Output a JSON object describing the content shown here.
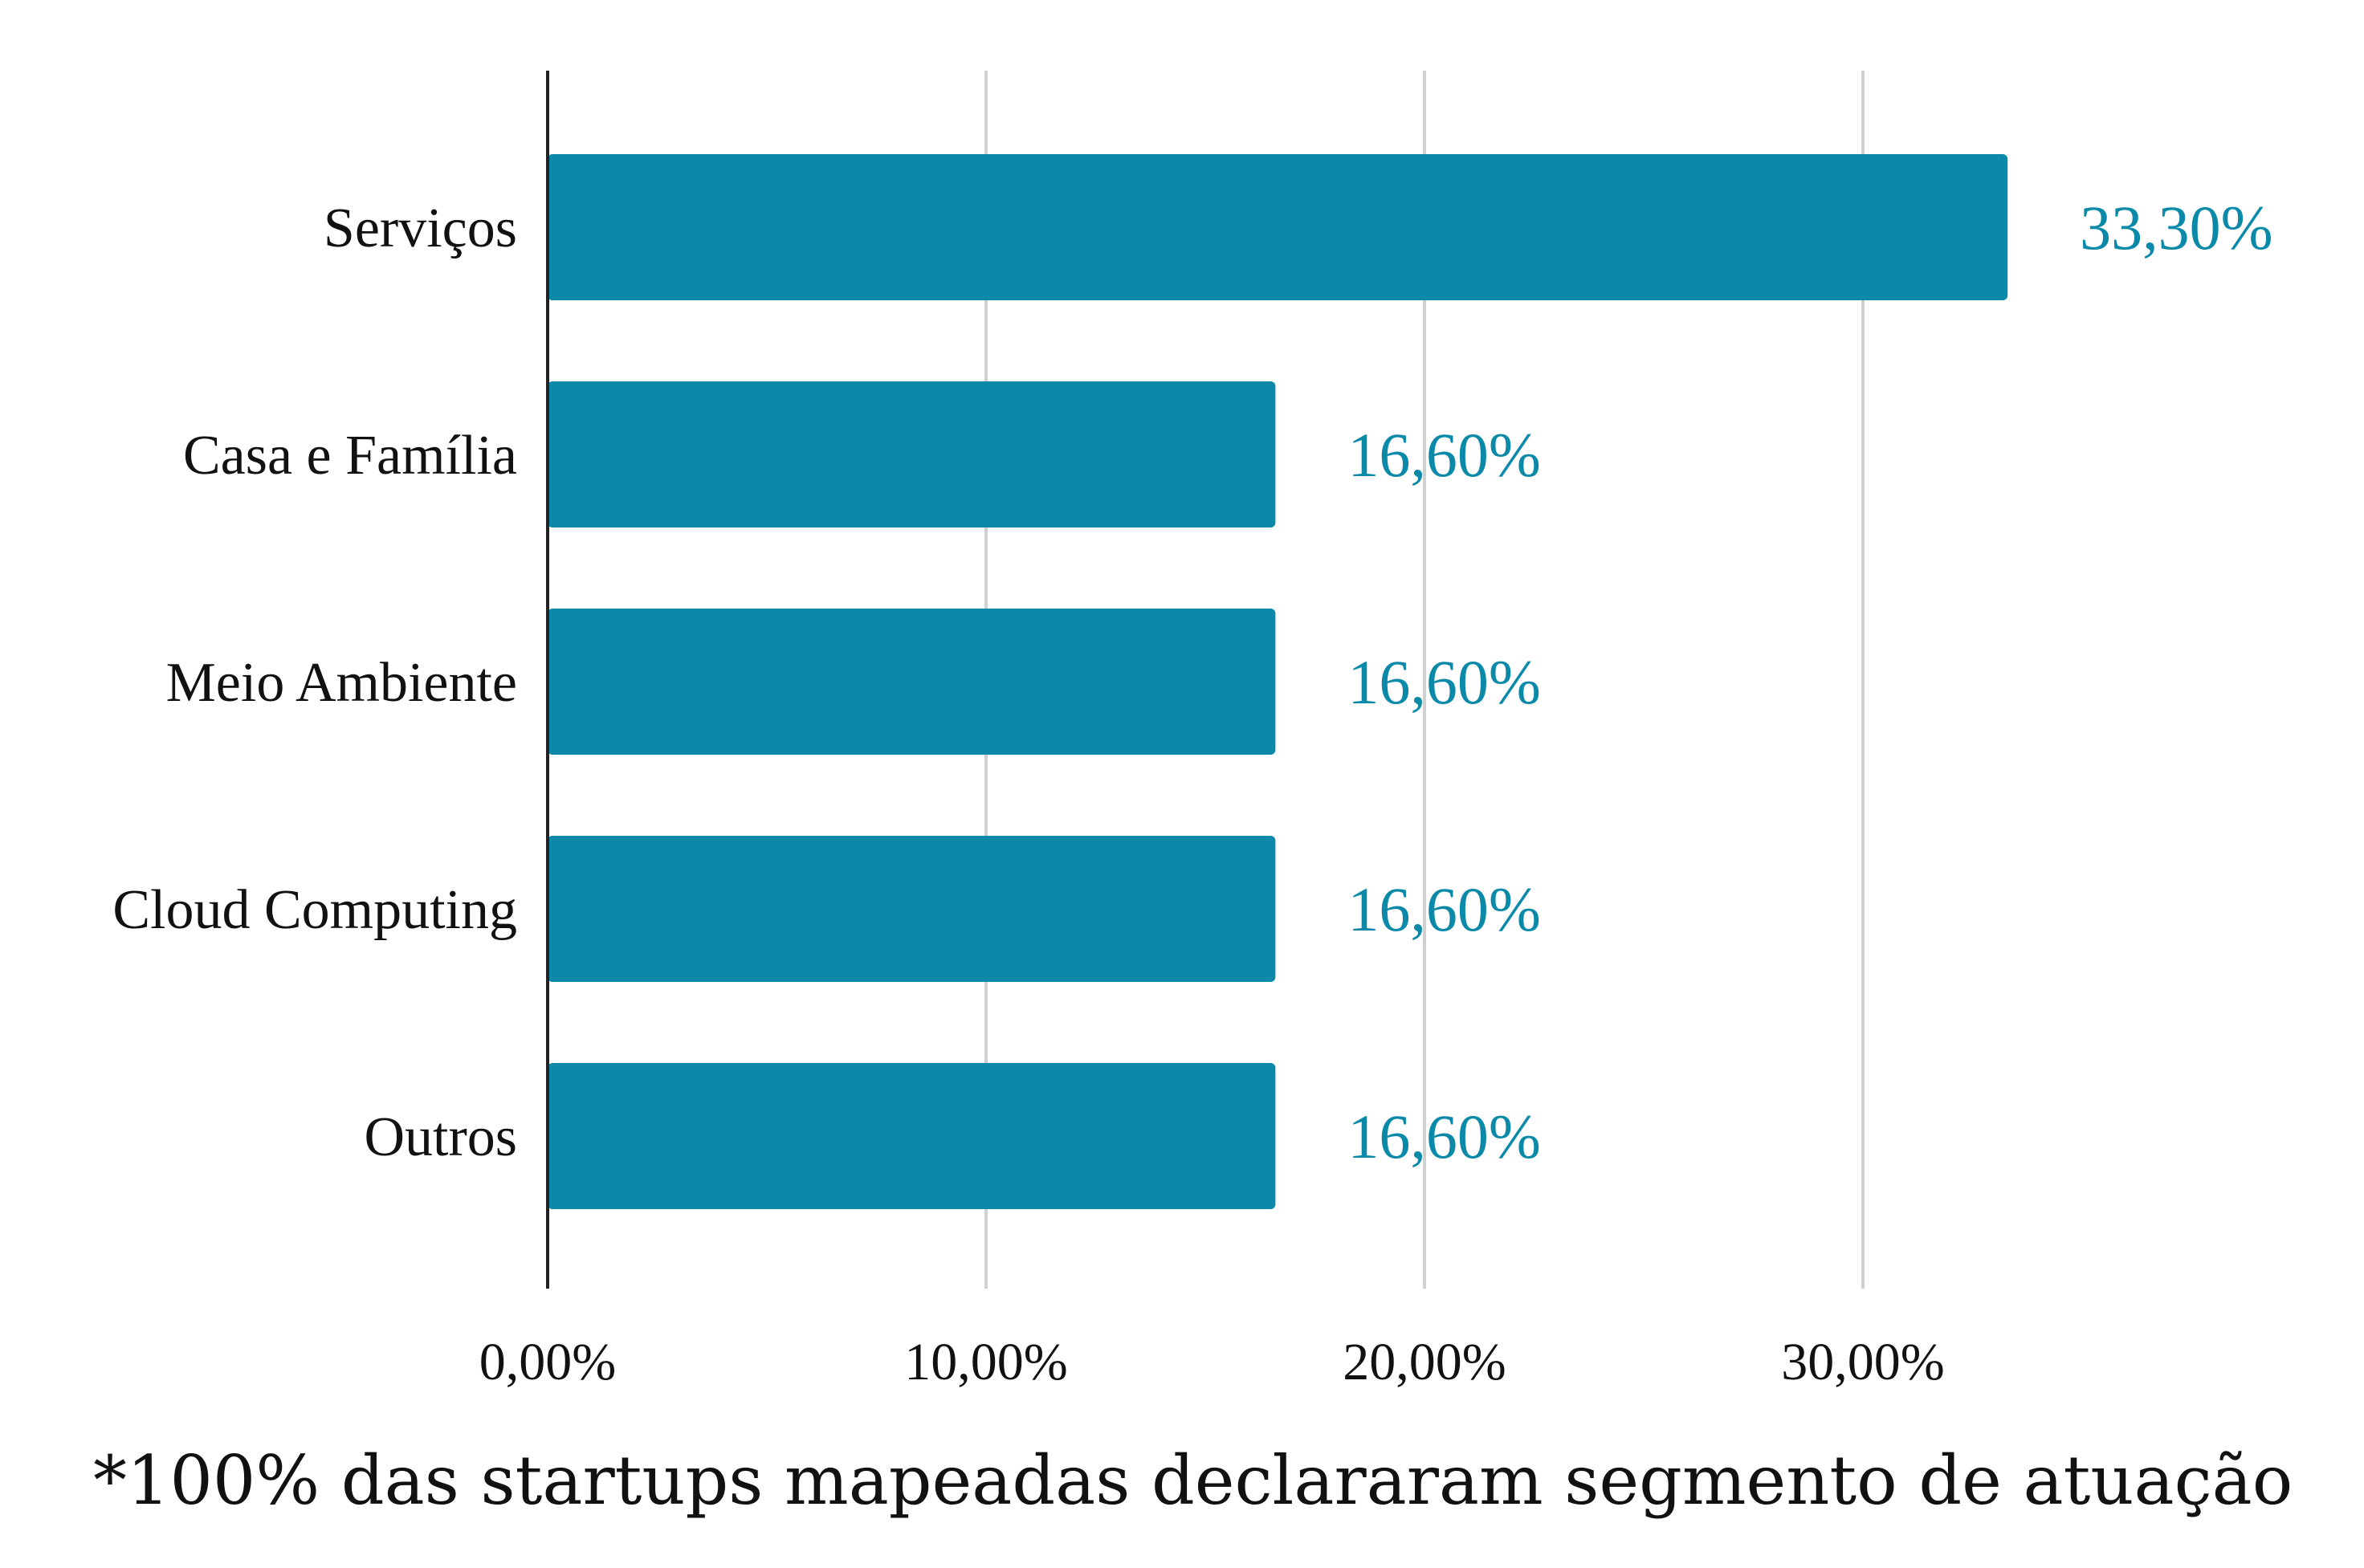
{
  "chart_data": {
    "type": "bar",
    "orientation": "horizontal",
    "categories": [
      "Serviços",
      "Casa e Família",
      "Meio Ambiente",
      "Cloud Computing",
      "Outros"
    ],
    "values": [
      33.3,
      16.6,
      16.6,
      16.6,
      16.6
    ],
    "data_labels": [
      "33,30%",
      "16,60%",
      "16,60%",
      "16,60%",
      "16,60%"
    ],
    "xlim": [
      0,
      40
    ],
    "x_ticks": [
      0,
      10,
      20,
      30
    ],
    "x_tick_labels": [
      "0,00%",
      "10,00%",
      "20,00%",
      "30,00%"
    ],
    "grid": "vertical",
    "bar_color": "#0A89A9",
    "data_label_color": "#0A89A9",
    "gridline_color": "#D0D0D0",
    "axis_color": "#222222"
  },
  "footnote": "*100% das startups mapeadas declararam segmento de atuação"
}
